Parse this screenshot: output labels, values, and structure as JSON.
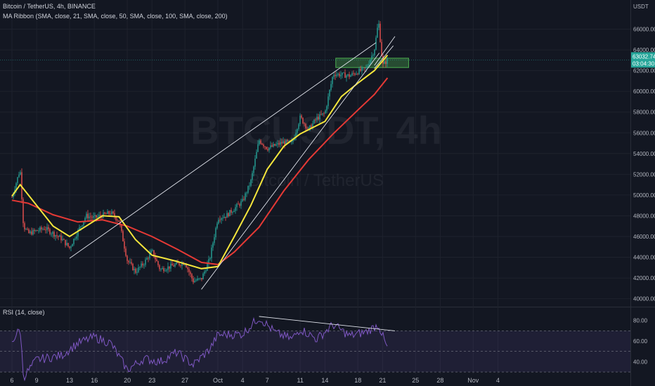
{
  "header": {
    "title": "Bitcoin / TetherUS, 4h, BINANCE",
    "indicator": "MA Ribbon (SMA, close, 21, SMA, close, 50, SMA, close, 100, SMA, close, 200)",
    "currency_label": "USDT"
  },
  "watermark": {
    "symbol": "BTCUSDT, 4h",
    "name": "Bitcoin / TetherUS"
  },
  "price_tag": {
    "price": "63032.74",
    "countdown": "03:04:30"
  },
  "rsi_panel": {
    "label": "RSI (14, close)"
  },
  "colors": {
    "bg": "#131722",
    "up": "#26a69a",
    "down": "#ef5350",
    "ma_fast": "#f5e63c",
    "ma_slow": "#e53935",
    "rsi": "#7e57c2",
    "zone": "#4caf50",
    "tag": "#26a69a"
  },
  "chart_data": [
    {
      "type": "candlestick",
      "title": "Bitcoin / TetherUS, 4h, BINANCE",
      "y_ticks": [
        40000,
        42000,
        44000,
        46000,
        48000,
        50000,
        52000,
        54000,
        56000,
        58000,
        60000,
        62000,
        64000,
        66000
      ],
      "y_tick_labels": [
        "40000.00",
        "42000.00",
        "44000.00",
        "46000.00",
        "48000.00",
        "50000.00",
        "52000.00",
        "54000.00",
        "56000.00",
        "58000.00",
        "60000.00",
        "62000.00",
        "64000.00",
        "66000.00"
      ],
      "ylim": [
        39500,
        68000
      ],
      "x_ticks": [
        "6",
        "9",
        "13",
        "16",
        "20",
        "23",
        "27",
        "Oct",
        "4",
        "7",
        "11",
        "14",
        "18",
        "21",
        "25",
        "28",
        "Nov",
        "4"
      ],
      "price_path": [
        [
          "Sep 6",
          49800
        ],
        [
          "Sep 7",
          52500
        ],
        [
          "Sep 7.4",
          47000
        ],
        [
          "Sep 8",
          46300
        ],
        [
          "Sep 10",
          46800
        ],
        [
          "Sep 12",
          45800
        ],
        [
          "Sep 13",
          44900
        ],
        [
          "Sep 14",
          46500
        ],
        [
          "Sep 15",
          48000
        ],
        [
          "Sep 16",
          47800
        ],
        [
          "Sep 18",
          48300
        ],
        [
          "Sep 19",
          47500
        ],
        [
          "Sep 20",
          43700
        ],
        [
          "Sep 21",
          42600
        ],
        [
          "Sep 22",
          43400
        ],
        [
          "Sep 23",
          44600
        ],
        [
          "Sep 24",
          42800
        ],
        [
          "Sep 26",
          43300
        ],
        [
          "Sep 27",
          43500
        ],
        [
          "Sep 28",
          41700
        ],
        [
          "Sep 29",
          41900
        ],
        [
          "Sep 30",
          43800
        ],
        [
          "Oct 1",
          47800
        ],
        [
          "Oct 2",
          48000
        ],
        [
          "Oct 4",
          49400
        ],
        [
          "Oct 5",
          51300
        ],
        [
          "Oct 6",
          55300
        ],
        [
          "Oct 7",
          54500
        ],
        [
          "Oct 9",
          55100
        ],
        [
          "Oct 10",
          55000
        ],
        [
          "Oct 11",
          57500
        ],
        [
          "Oct 12",
          56300
        ],
        [
          "Oct 13",
          57400
        ],
        [
          "Oct 14",
          57900
        ],
        [
          "Oct 15",
          61700
        ],
        [
          "Oct 16",
          61600
        ],
        [
          "Oct 17",
          61500
        ],
        [
          "Oct 18",
          61900
        ],
        [
          "Oct 19",
          62200
        ],
        [
          "Oct 20",
          64000
        ],
        [
          "Oct 20.5",
          66800
        ],
        [
          "Oct 21",
          62500
        ],
        [
          "Oct 21.6",
          63032.74
        ]
      ],
      "ma21": [
        [
          "Sep 6",
          49900
        ],
        [
          "Sep 7",
          51000
        ],
        [
          "Sep 9",
          49000
        ],
        [
          "Sep 11",
          47000
        ],
        [
          "Sep 13",
          46000
        ],
        [
          "Sep 15",
          47000
        ],
        [
          "Sep 17",
          48000
        ],
        [
          "Sep 19",
          47900
        ],
        [
          "Sep 21",
          45700
        ],
        [
          "Sep 23",
          44200
        ],
        [
          "Sep 26",
          43600
        ],
        [
          "Sep 29",
          42900
        ],
        [
          "Oct 1",
          43100
        ],
        [
          "Oct 3",
          46000
        ],
        [
          "Oct 5",
          49000
        ],
        [
          "Oct 7",
          52500
        ],
        [
          "Oct 9",
          54700
        ],
        [
          "Oct 11",
          55900
        ],
        [
          "Oct 14",
          57100
        ],
        [
          "Oct 16",
          59500
        ],
        [
          "Oct 18",
          60800
        ],
        [
          "Oct 20",
          62000
        ],
        [
          "Oct 21.6",
          63500
        ]
      ],
      "ma50": [
        [
          "Sep 6",
          49500
        ],
        [
          "Sep 8",
          49200
        ],
        [
          "Sep 11",
          48100
        ],
        [
          "Sep 14",
          47400
        ],
        [
          "Sep 17",
          47600
        ],
        [
          "Sep 20",
          47000
        ],
        [
          "Sep 23",
          46000
        ],
        [
          "Sep 26",
          44800
        ],
        [
          "Sep 29",
          43500
        ],
        [
          "Oct 1",
          43300
        ],
        [
          "Oct 3",
          44500
        ],
        [
          "Oct 6",
          46900
        ],
        [
          "Oct 9",
          50400
        ],
        [
          "Oct 12",
          53400
        ],
        [
          "Oct 15",
          55900
        ],
        [
          "Oct 18",
          58200
        ],
        [
          "Oct 20",
          59700
        ],
        [
          "Oct 21.6",
          61300
        ]
      ],
      "zone": {
        "from": 62300,
        "to": 63200
      },
      "current_price": 63032.74
    },
    {
      "type": "line",
      "title": "RSI (14, close)",
      "y_ticks": [
        40,
        60,
        80
      ],
      "y_tick_labels": [
        "40.00",
        "60.00",
        "80.00"
      ],
      "levels": [
        70,
        50,
        30
      ],
      "ylim": [
        28,
        88
      ],
      "rsi": [
        [
          "Sep 6",
          60
        ],
        [
          "Sep 7",
          72
        ],
        [
          "Sep 7.4",
          25
        ],
        [
          "Sep 9",
          42
        ],
        [
          "Sep 12",
          46
        ],
        [
          "Sep 14",
          58
        ],
        [
          "Sep 16",
          64
        ],
        [
          "Sep 18",
          58
        ],
        [
          "Sep 20",
          32
        ],
        [
          "Sep 22",
          43
        ],
        [
          "Sep 24",
          40
        ],
        [
          "Sep 26",
          49
        ],
        [
          "Sep 28",
          37
        ],
        [
          "Sep 30",
          52
        ],
        [
          "Oct 1",
          66
        ],
        [
          "Oct 4",
          67
        ],
        [
          "Oct 6",
          83
        ],
        [
          "Oct 8",
          68
        ],
        [
          "Oct 10",
          62
        ],
        [
          "Oct 11",
          72
        ],
        [
          "Oct 13",
          62
        ],
        [
          "Oct 15",
          76
        ],
        [
          "Oct 17",
          65
        ],
        [
          "Oct 19",
          69
        ],
        [
          "Oct 20.5",
          76
        ],
        [
          "Oct 21.6",
          52
        ]
      ]
    }
  ]
}
